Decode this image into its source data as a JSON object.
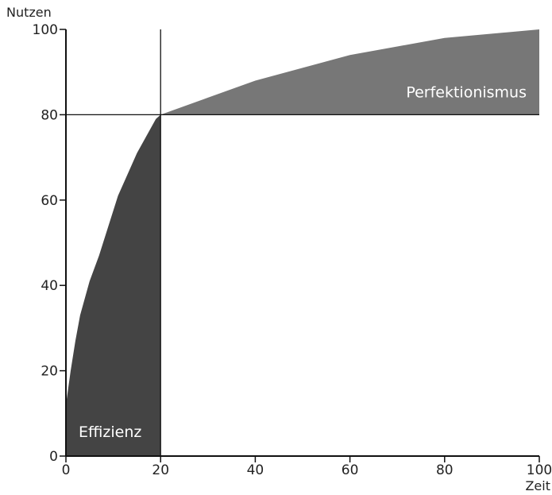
{
  "chart_data": {
    "type": "area",
    "xlabel": "Zeit",
    "ylabel": "Nutzen",
    "xlim": [
      0,
      100
    ],
    "ylim": [
      0,
      100
    ],
    "x_ticks": [
      0,
      20,
      40,
      60,
      80,
      100
    ],
    "y_ticks": [
      0,
      20,
      40,
      60,
      80,
      100
    ],
    "threshold": {
      "x": 20,
      "y": 80
    },
    "curve": {
      "x": [
        0,
        0.5,
        1,
        2,
        3,
        5,
        7,
        9,
        11,
        13,
        15,
        17,
        19,
        20,
        30,
        40,
        50,
        60,
        70,
        80,
        90,
        100
      ],
      "y": [
        12,
        16,
        20,
        27,
        33,
        41,
        47,
        54,
        61,
        66,
        71,
        75,
        79,
        80,
        84,
        88,
        91,
        94,
        96,
        98,
        99,
        100
      ]
    },
    "regions": [
      {
        "label": "Effizienz",
        "color": "#444444",
        "x_range": [
          0,
          20
        ]
      },
      {
        "label": "Perfektionismus",
        "color": "#777777",
        "x_range": [
          20,
          100
        ]
      }
    ],
    "grid": false
  }
}
